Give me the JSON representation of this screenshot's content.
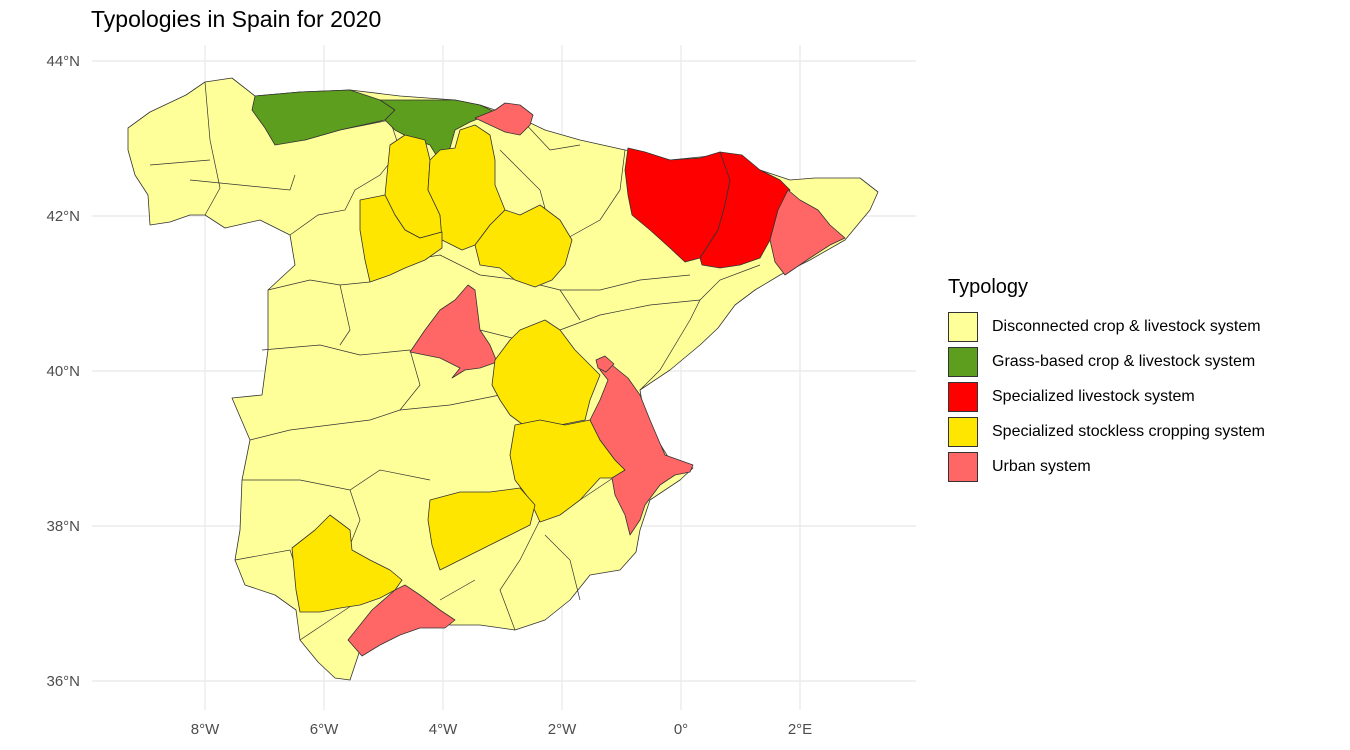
{
  "title": "Typologies in Spain for 2020",
  "axes": {
    "x_ticks": [
      "8°W",
      "6°W",
      "4°W",
      "2°W",
      "0°",
      "2°E"
    ],
    "y_ticks": [
      "44°N",
      "42°N",
      "40°N",
      "38°N",
      "36°N"
    ]
  },
  "legend": {
    "title": "Typology",
    "items": [
      {
        "label": "Disconnected crop & livestock system",
        "color": "#FFFF99"
      },
      {
        "label": "Grass-based crop & livestock system",
        "color": "#5E9E1E"
      },
      {
        "label": "Specialized livestock system",
        "color": "#FF0000"
      },
      {
        "label": "Specialized stockless cropping system",
        "color": "#FFE600"
      },
      {
        "label": "Urban system",
        "color": "#FF6666"
      }
    ]
  }
}
